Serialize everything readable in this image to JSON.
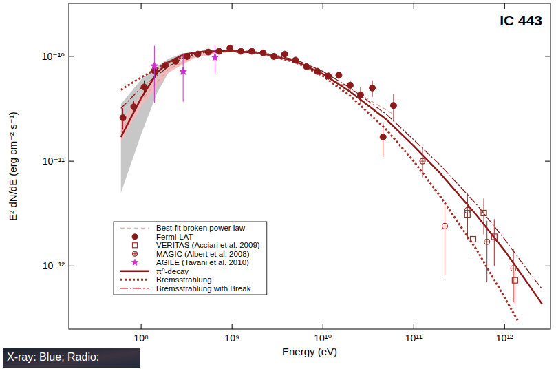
{
  "chart_data": {
    "type": "scatter",
    "title": "IC 443",
    "x_label": "Energy (eV)",
    "y_label": "E² dN/dE (erg cm⁻² s⁻¹)",
    "annotations": [
      "X-ray: Blue; Radio:"
    ],
    "log": true,
    "grid": false,
    "legend": "lower left",
    "xlim": [
      16000000.0,
      3200000000000.0
    ],
    "ylim": [
      2.5e-13,
      3.2e-10
    ],
    "xticks": [
      {
        "value": 100000000.0,
        "label": "10⁸"
      },
      {
        "value": 1000000000.0,
        "label": "10⁹"
      },
      {
        "value": 10000000000.0,
        "label": "10¹⁰"
      },
      {
        "value": 100000000000.0,
        "label": "10¹¹"
      },
      {
        "value": 1000000000000.0,
        "label": "10¹²"
      }
    ],
    "yticks": [
      {
        "value": 1e-12,
        "label": "10⁻¹²"
      },
      {
        "value": 1e-11,
        "label": "10⁻¹¹"
      },
      {
        "value": 1e-10,
        "label": "10⁻¹⁰"
      }
    ],
    "bands": [
      {
        "color": "#bdbdbd",
        "x": [
          60000000.0,
          100000000.0,
          150000000.0,
          200000000.0,
          300000000.0
        ],
        "lower": [
          5e-12,
          1.8e-11,
          4.5e-11,
          7e-11,
          1e-10
        ],
        "upper": [
          3.5e-11,
          6e-11,
          8e-11,
          9.5e-11,
          1.08e-10
        ]
      },
      {
        "color": "#f2b8b8",
        "x": [
          60000000.0,
          100000000.0,
          200000000.0,
          400000000.0,
          1000000000.0
        ],
        "lower": [
          1.5e-11,
          3.3e-11,
          7e-11,
          9.8e-11,
          1.12e-10
        ],
        "upper": [
          2.4e-11,
          4.4e-11,
          8e-11,
          1.06e-10,
          1.18e-10
        ]
      }
    ],
    "series": [
      {
        "name": "Best-fit broken power law",
        "type": "line",
        "line_style": "dashed",
        "color": "#e59a9a",
        "x": [
          60000000.0,
          100000000.0,
          200000000.0,
          400000000.0,
          1000000000.0,
          3000000000.0,
          10000000000.0,
          30000000000.0,
          60000000000.0
        ],
        "values": [
          1.9e-11,
          3.8e-11,
          7.5e-11,
          1.02e-10,
          1.15e-10,
          1.05e-10,
          6.8e-11,
          4e-11,
          2.8e-11
        ]
      },
      {
        "name": "Fermi-LAT",
        "type": "scatter",
        "marker": "circle",
        "color": "#8b1a1a",
        "x": [
          63000000.0,
          83000000.0,
          108000000.0,
          140000000.0,
          185000000.0,
          240000000.0,
          320000000.0,
          420000000.0,
          550000000.0,
          720000000.0,
          950000000.0,
          1250000000.0,
          1650000000.0,
          2200000000.0,
          2900000000.0,
          3800000000.0,
          5000000000.0,
          6600000000.0,
          8700000000.0,
          11500000000.0,
          15000000000.0,
          20000000000.0,
          26000000000.0,
          35000000000.0,
          46000000000.0,
          60000000000.0
        ],
        "values": [
          2.6e-11,
          3.3e-11,
          5.1e-11,
          7.3e-11,
          8.2e-11,
          9e-11,
          1e-10,
          1.05e-10,
          1.1e-10,
          1.12e-10,
          1.2e-10,
          1.12e-10,
          1.12e-10,
          1.08e-10,
          1e-10,
          1.05e-10,
          9.2e-11,
          8e-11,
          7.2e-11,
          6.5e-11,
          6.6e-11,
          5.3e-11,
          4.3e-11,
          5e-11,
          1.7e-11,
          3.4e-11
        ],
        "errors": [
          6e-12,
          5e-12,
          8e-12,
          6e-12,
          5e-12,
          5e-12,
          5e-12,
          5e-12,
          5e-12,
          5e-12,
          5e-12,
          5e-12,
          5e-12,
          5e-12,
          5e-12,
          5e-12,
          5e-12,
          5e-12,
          5e-12,
          5e-12,
          6e-12,
          6e-12,
          8e-12,
          9e-12,
          6e-12,
          1e-11
        ]
      },
      {
        "name": "VERITAS (Acciari et al. 2009)",
        "type": "scatter",
        "marker": "square",
        "color": "#a52a2a",
        "x": [
          390000000000.0,
          450000000000.0,
          590000000000.0,
          770000000000.0,
          1300000000000.0
        ],
        "values": [
          3.1e-12,
          1.8e-12,
          3.2e-12,
          1.9e-12,
          7.3e-13
        ],
        "errors": [
          1.3e-12,
          6e-13,
          1.2e-12,
          9e-13,
          3e-13
        ]
      },
      {
        "name": "MAGIC (Albert et al. 2008)",
        "type": "scatter",
        "marker": "circle-cross",
        "color": "#a52a2a",
        "x": [
          125000000000.0,
          220000000000.0,
          390000000000.0,
          640000000000.0,
          1250000000000.0
        ],
        "values": [
          1e-11,
          2.4e-12,
          3.4e-12,
          1.7e-12,
          9.5e-13
        ],
        "errors": [
          3e-12,
          1.6e-12,
          1.6e-12,
          1e-12,
          5e-13
        ]
      },
      {
        "name": "AGILE (Tavani et al. 2010)",
        "type": "scatter",
        "marker": "star",
        "color": "#cc33cc",
        "x": [
          140000000.0,
          290000000.0,
          650000000.0
        ],
        "values": [
          8.1e-11,
          7.2e-11,
          9.8e-11
        ],
        "errors": [
          4.5e-11,
          3.5e-11,
          3e-11
        ]
      },
      {
        "name": "π⁰-decay",
        "type": "line",
        "line_style": "solid",
        "color": "#8b1a1a",
        "x": [
          60000000.0,
          100000000.0,
          150000000.0,
          200000000.0,
          300000000.0,
          500000000.0,
          1000000000.0,
          2000000000.0,
          5000000000.0,
          10000000000.0,
          20000000000.0,
          50000000000.0,
          100000000000.0,
          200000000000.0,
          500000000000.0,
          1000000000000.0,
          2000000000000.0,
          2600000000000.0
        ],
        "values": [
          1.7e-11,
          4e-11,
          7e-11,
          8.8e-11,
          1.05e-10,
          1.12e-10,
          1.12e-10,
          1.08e-10,
          9e-11,
          6.8e-11,
          4.6e-11,
          2.5e-11,
          1.4e-11,
          7.5e-12,
          3e-12,
          1.4e-12,
          6e-13,
          4.3e-13
        ]
      },
      {
        "name": "Bremsstrahlung",
        "type": "line",
        "line_style": "dotted",
        "color": "#a0302a",
        "x": [
          60000000.0,
          100000000.0,
          200000000.0,
          300000000.0,
          500000000.0,
          1000000000.0,
          2000000000.0,
          5000000000.0,
          10000000000.0,
          20000000000.0,
          50000000000.0,
          100000000000.0,
          200000000000.0,
          500000000000.0,
          1000000000000.0,
          1400000000000.0
        ],
        "values": [
          4.8e-11,
          6.3e-11,
          8.8e-11,
          1e-10,
          1.1e-10,
          1.12e-10,
          1.08e-10,
          8.8e-11,
          6.5e-11,
          4.2e-11,
          2e-11,
          1e-11,
          4.5e-12,
          1.4e-12,
          5e-13,
          3e-13
        ]
      },
      {
        "name": "Bremsstrahlung with Break",
        "type": "line",
        "line_style": "dashdot",
        "color": "#8b1a1a",
        "x": [
          60000000.0,
          100000000.0,
          200000000.0,
          300000000.0,
          500000000.0,
          1000000000.0,
          2000000000.0,
          5000000000.0,
          10000000000.0,
          20000000000.0,
          50000000000.0,
          100000000000.0,
          200000000000.0,
          500000000000.0,
          1000000000000.0,
          2000000000000.0,
          2600000000000.0
        ],
        "values": [
          3.2e-11,
          5e-11,
          8e-11,
          9.8e-11,
          1.1e-10,
          1.15e-10,
          1.1e-10,
          9.3e-11,
          7.2e-11,
          5e-11,
          2.8e-11,
          1.6e-11,
          9e-12,
          3.8e-12,
          1.8e-12,
          8e-13,
          6e-13
        ]
      }
    ]
  }
}
